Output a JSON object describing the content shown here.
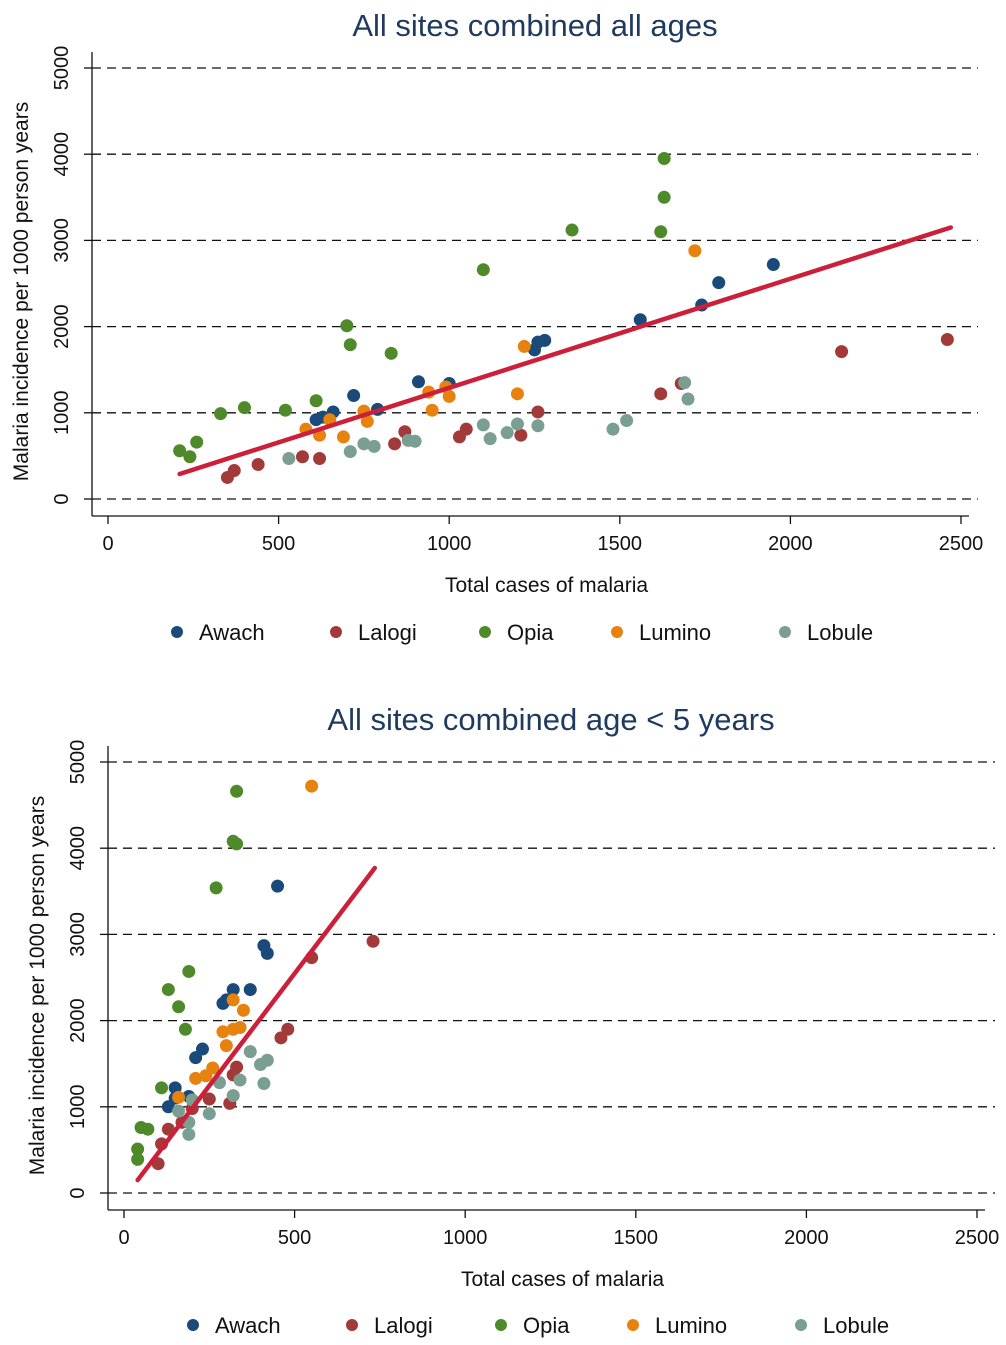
{
  "figure": {
    "series_order": [
      "Awach",
      "Lalogi",
      "Opia",
      "Lumino",
      "Lobule"
    ],
    "colors": {
      "Awach": "#1a4a7a",
      "Lalogi": "#a33a3a",
      "Opia": "#4e8a2a",
      "Lumino": "#e8820e",
      "Lobule": "#7a9e92",
      "fit_line": "#cc1f3a",
      "title": "#1f3a5f"
    }
  },
  "chart_data": [
    {
      "type": "scatter",
      "title": "All sites combined all ages",
      "xlabel": "Total cases of malaria",
      "ylabel": "Malaria incidence per 1000 person years",
      "xlim": [
        0,
        2500
      ],
      "ylim": [
        0,
        5000
      ],
      "x_ticks": [
        "0",
        "500",
        "1000",
        "1500",
        "2000",
        "2500"
      ],
      "y_ticks": [
        "0",
        "1000",
        "2000",
        "3000",
        "4000",
        "5000"
      ],
      "grid": "horizontal dashed",
      "legend_position": "bottom",
      "fit_line": {
        "x": [
          210,
          2470
        ],
        "y": [
          290,
          3150
        ]
      },
      "series": [
        {
          "name": "Awach",
          "points": [
            [
              610,
              920
            ],
            [
              630,
              950
            ],
            [
              660,
              1010
            ],
            [
              720,
              1200
            ],
            [
              790,
              1040
            ],
            [
              910,
              1360
            ],
            [
              1000,
              1340
            ],
            [
              1250,
              1730
            ],
            [
              1260,
              1820
            ],
            [
              1280,
              1840
            ],
            [
              1560,
              2080
            ],
            [
              1740,
              2250
            ],
            [
              1790,
              2510
            ],
            [
              1950,
              2720
            ]
          ]
        },
        {
          "name": "Lalogi",
          "points": [
            [
              350,
              250
            ],
            [
              370,
              330
            ],
            [
              440,
              400
            ],
            [
              570,
              490
            ],
            [
              620,
              470
            ],
            [
              840,
              640
            ],
            [
              870,
              780
            ],
            [
              1030,
              720
            ],
            [
              1050,
              810
            ],
            [
              1210,
              740
            ],
            [
              1260,
              1010
            ],
            [
              1620,
              1220
            ],
            [
              1680,
              1340
            ],
            [
              2150,
              1710
            ],
            [
              2460,
              1850
            ]
          ]
        },
        {
          "name": "Opia",
          "points": [
            [
              210,
              560
            ],
            [
              240,
              490
            ],
            [
              260,
              660
            ],
            [
              330,
              990
            ],
            [
              400,
              1060
            ],
            [
              520,
              1030
            ],
            [
              610,
              1140
            ],
            [
              700,
              2010
            ],
            [
              710,
              1790
            ],
            [
              830,
              1690
            ],
            [
              1100,
              2660
            ],
            [
              1360,
              3120
            ],
            [
              1620,
              3100
            ],
            [
              1630,
              3950
            ],
            [
              1630,
              3500
            ]
          ]
        },
        {
          "name": "Lumino",
          "points": [
            [
              580,
              810
            ],
            [
              620,
              740
            ],
            [
              650,
              920
            ],
            [
              690,
              720
            ],
            [
              750,
              1020
            ],
            [
              760,
              900
            ],
            [
              940,
              1240
            ],
            [
              950,
              1030
            ],
            [
              990,
              1300
            ],
            [
              1000,
              1190
            ],
            [
              1200,
              1220
            ],
            [
              1220,
              1770
            ],
            [
              1720,
              2880
            ]
          ]
        },
        {
          "name": "Lobule",
          "points": [
            [
              530,
              470
            ],
            [
              710,
              550
            ],
            [
              750,
              640
            ],
            [
              780,
              610
            ],
            [
              880,
              680
            ],
            [
              900,
              670
            ],
            [
              1100,
              860
            ],
            [
              1120,
              700
            ],
            [
              1170,
              770
            ],
            [
              1200,
              870
            ],
            [
              1260,
              850
            ],
            [
              1480,
              810
            ],
            [
              1520,
              910
            ],
            [
              1690,
              1350
            ],
            [
              1700,
              1160
            ]
          ]
        }
      ]
    },
    {
      "type": "scatter",
      "title": "All sites combined age < 5 years",
      "xlabel": "Total cases of malaria",
      "ylabel": "Malaria incidence per 1000 person years",
      "xlim": [
        0,
        2500
      ],
      "ylim": [
        0,
        5000
      ],
      "x_ticks": [
        "0",
        "500",
        "1000",
        "1500",
        "2000",
        "2500"
      ],
      "y_ticks": [
        "0",
        "1000",
        "2000",
        "3000",
        "4000",
        "5000"
      ],
      "grid": "horizontal dashed",
      "legend_position": "bottom",
      "fit_line": {
        "x": [
          40,
          735
        ],
        "y": [
          150,
          3770
        ]
      },
      "series": [
        {
          "name": "Awach",
          "points": [
            [
              130,
              1000
            ],
            [
              150,
              1100
            ],
            [
              150,
              1220
            ],
            [
              190,
              1120
            ],
            [
              210,
              1570
            ],
            [
              230,
              1670
            ],
            [
              290,
              2200
            ],
            [
              300,
              2240
            ],
            [
              320,
              2360
            ],
            [
              370,
              2360
            ],
            [
              410,
              2870
            ],
            [
              420,
              2780
            ],
            [
              450,
              3560
            ]
          ]
        },
        {
          "name": "Lalogi",
          "points": [
            [
              100,
              340
            ],
            [
              110,
              570
            ],
            [
              130,
              740
            ],
            [
              170,
              820
            ],
            [
              200,
              980
            ],
            [
              250,
              1090
            ],
            [
              310,
              1040
            ],
            [
              320,
              1370
            ],
            [
              330,
              1460
            ],
            [
              460,
              1800
            ],
            [
              480,
              1900
            ],
            [
              550,
              2730
            ],
            [
              730,
              2920
            ]
          ]
        },
        {
          "name": "Opia",
          "points": [
            [
              40,
              510
            ],
            [
              40,
              390
            ],
            [
              50,
              760
            ],
            [
              70,
              740
            ],
            [
              110,
              1220
            ],
            [
              130,
              2360
            ],
            [
              160,
              2160
            ],
            [
              180,
              1900
            ],
            [
              190,
              2570
            ],
            [
              270,
              3540
            ],
            [
              320,
              4080
            ],
            [
              330,
              4050
            ],
            [
              330,
              4660
            ]
          ]
        },
        {
          "name": "Lumino",
          "points": [
            [
              160,
              1110
            ],
            [
              210,
              1330
            ],
            [
              240,
              1360
            ],
            [
              260,
              1450
            ],
            [
              290,
              1870
            ],
            [
              300,
              1710
            ],
            [
              320,
              1900
            ],
            [
              320,
              2240
            ],
            [
              340,
              1920
            ],
            [
              350,
              2120
            ],
            [
              550,
              4720
            ]
          ]
        },
        {
          "name": "Lobule",
          "points": [
            [
              160,
              950
            ],
            [
              190,
              820
            ],
            [
              190,
              680
            ],
            [
              200,
              1080
            ],
            [
              250,
              920
            ],
            [
              280,
              1280
            ],
            [
              320,
              1130
            ],
            [
              340,
              1310
            ],
            [
              370,
              1640
            ],
            [
              400,
              1490
            ],
            [
              410,
              1270
            ],
            [
              420,
              1540
            ]
          ]
        }
      ]
    }
  ]
}
